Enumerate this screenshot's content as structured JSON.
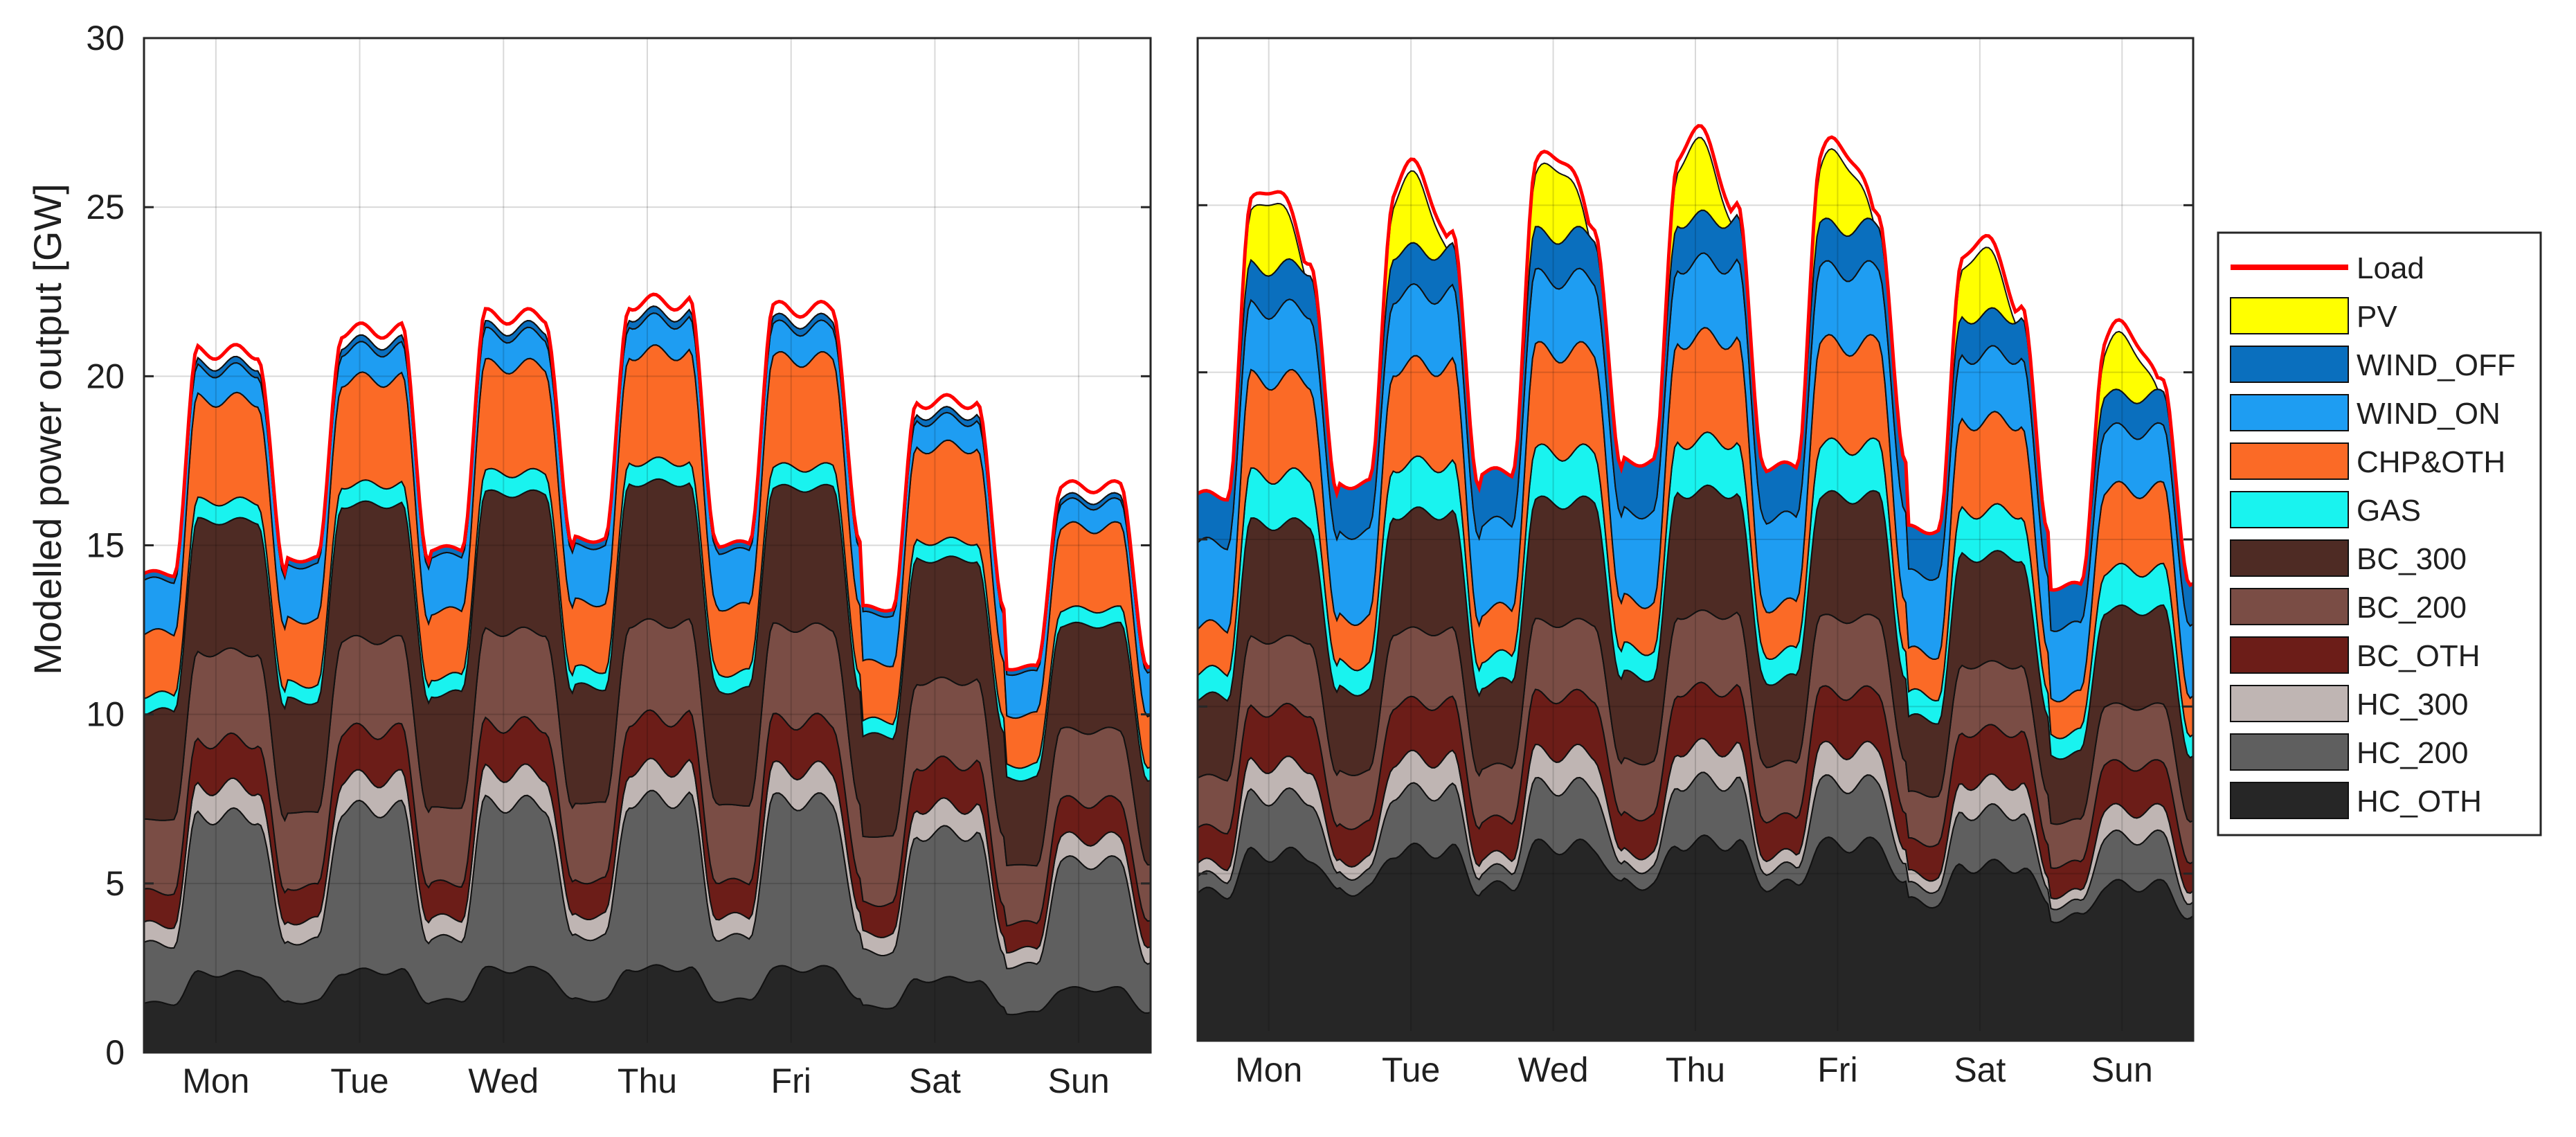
{
  "chart_data": {
    "type": "area",
    "stacked": true,
    "ylabel": "Modelled power output [GW]",
    "ylim": [
      0,
      30
    ],
    "yticks": [
      0,
      5,
      10,
      15,
      20,
      25,
      30
    ],
    "categories": [
      "Mon",
      "Tue",
      "Wed",
      "Thu",
      "Fri",
      "Sat",
      "Sun"
    ],
    "x_unit": "hour of week",
    "xlim": [
      0,
      168
    ],
    "grid": true,
    "legend_placement": "right",
    "colors": {
      "Load": "#ff0000",
      "PV": "#ffff00",
      "WIND_OFF": "#0a6fbe",
      "WIND_ON": "#1e9df2",
      "CHP&OTH": "#fb6a26",
      "GAS": "#19f3ef",
      "BC_300": "#4e2b24",
      "BC_200": "#7a4d45",
      "BC_OTH": "#6c1d18",
      "HC_300": "#bfb5b3",
      "HC_200": "#5f5f5f",
      "HC_OTH": "#262626"
    },
    "legend_entries": [
      "Load",
      "PV",
      "WIND_OFF",
      "WIND_ON",
      "CHP&OTH",
      "GAS",
      "BC_300",
      "BC_200",
      "BC_OTH",
      "HC_300",
      "HC_200",
      "HC_OTH"
    ],
    "stack_order": [
      "HC_OTH",
      "HC_200",
      "HC_300",
      "BC_OTH",
      "BC_200",
      "BC_300",
      "GAS",
      "CHP&OTH",
      "WIND_ON",
      "WIND_OFF",
      "PV"
    ],
    "panels": [
      {
        "name": "left",
        "day_profile": {
          "HC_OTH": {
            "day": 2.4,
            "night": 1.5
          },
          "HC_200": {
            "day": 4.8,
            "night": 1.8
          },
          "HC_300": {
            "day": 0.9,
            "night": 0.6
          },
          "BC_OTH": {
            "day": 1.4,
            "night": 1.0
          },
          "BC_200": {
            "day": 2.7,
            "night": 2.2
          },
          "BC_300": {
            "day": 4.0,
            "night": 3.3
          },
          "GAS": {
            "day": 0.6,
            "night": 0.5
          },
          "CHP&OTH": {
            "day": 3.1,
            "night": 1.9
          },
          "WIND_ON": {
            "day": 0.9,
            "night": 1.6
          },
          "WIND_OFF": {
            "day": 0.2,
            "night": 0.2
          },
          "PV": {
            "day": 0.0,
            "night": 0.0
          }
        },
        "daily_scale": [
          0.97,
          1.0,
          1.02,
          1.04,
          1.03,
          0.9,
          0.78
        ],
        "load_peaks": [
          21.2,
          21.6,
          22.2,
          22.6,
          22.4,
          19.7,
          17.0
        ],
        "load_troughs": [
          13.8,
          15.6,
          15.5,
          15.3,
          15.2,
          14.1,
          13.0
        ]
      },
      {
        "name": "right",
        "day_profile": {
          "HC_OTH": {
            "day": 5.8,
            "night": 4.6
          },
          "HC_200": {
            "day": 1.8,
            "night": 0.5
          },
          "HC_300": {
            "day": 1.0,
            "night": 0.4
          },
          "BC_OTH": {
            "day": 1.7,
            "night": 1.1
          },
          "BC_200": {
            "day": 2.2,
            "night": 1.6
          },
          "BC_300": {
            "day": 3.6,
            "night": 2.5
          },
          "GAS": {
            "day": 1.5,
            "night": 0.8
          },
          "CHP&OTH": {
            "day": 3.0,
            "night": 1.4
          },
          "WIND_ON": {
            "day": 2.2,
            "night": 2.6
          },
          "WIND_OFF": {
            "day": 1.3,
            "night": 1.5
          },
          "PV": {
            "day": 2.2,
            "night": 0.0
          }
        },
        "daily_scale": [
          0.96,
          0.98,
          1.0,
          1.02,
          1.01,
          0.9,
          0.8
        ],
        "load_peaks": [
          25.0,
          25.5,
          26.0,
          26.6,
          26.3,
          23.3,
          20.0
        ],
        "load_troughs": [
          16.2,
          18.4,
          18.6,
          18.5,
          18.5,
          16.8,
          15.0
        ]
      }
    ]
  }
}
